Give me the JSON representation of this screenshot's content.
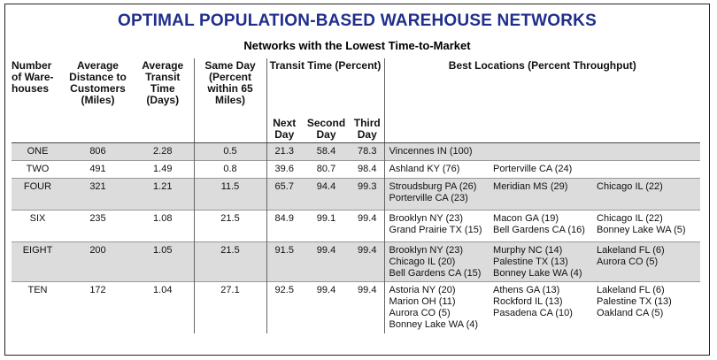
{
  "title": "OPTIMAL POPULATION-BASED WAREHOUSE NETWORKS",
  "subtitle": "Networks with the Lowest Time-to-Market",
  "headers": {
    "num_warehouses": [
      "Number",
      "of Ware-",
      "houses"
    ],
    "avg_distance": [
      "Average",
      "Distance to",
      "Customers",
      "(Miles)"
    ],
    "avg_transit": [
      "Average",
      "Transit",
      "Time",
      "(Days)"
    ],
    "same_day": [
      "Same Day",
      "(Percent",
      "within 65",
      "Miles)"
    ],
    "transit_time": "Transit Time (Percent)",
    "next_day": [
      "Next",
      "Day"
    ],
    "second_day": [
      "Second",
      "Day"
    ],
    "third_day": [
      "Third",
      "Day"
    ],
    "best_locations": "Best Locations (Percent Throughput)"
  },
  "rows": [
    {
      "label": "ONE",
      "distance": "806",
      "transit": "2.28",
      "same_day": "0.5",
      "next": "21.3",
      "second": "58.4",
      "third": "78.3",
      "loc1": [
        "Vincennes IN (100)"
      ],
      "loc2": [],
      "loc3": []
    },
    {
      "label": "TWO",
      "distance": "491",
      "transit": "1.49",
      "same_day": "0.8",
      "next": "39.6",
      "second": "80.7",
      "third": "98.4",
      "loc1": [
        "Ashland KY (76)"
      ],
      "loc2": [
        "Porterville CA (24)"
      ],
      "loc3": []
    },
    {
      "label": "FOUR",
      "distance": "321",
      "transit": "1.21",
      "same_day": "11.5",
      "next": "65.7",
      "second": "94.4",
      "third": "99.3",
      "loc1": [
        "Stroudsburg PA (26)",
        "Porterville CA (23)"
      ],
      "loc2": [
        "Meridian MS (29)"
      ],
      "loc3": [
        "Chicago IL (22)"
      ]
    },
    {
      "label": "SIX",
      "distance": "235",
      "transit": "1.08",
      "same_day": "21.5",
      "next": "84.9",
      "second": "99.1",
      "third": "99.4",
      "loc1": [
        "Brooklyn NY (23)",
        "Grand Prairie TX (15)"
      ],
      "loc2": [
        "Macon GA (19)",
        "Bell Gardens CA (16)"
      ],
      "loc3": [
        "Chicago IL (22)",
        "Bonney Lake WA (5)"
      ]
    },
    {
      "label": "EIGHT",
      "distance": "200",
      "transit": "1.05",
      "same_day": "21.5",
      "next": "91.5",
      "second": "99.4",
      "third": "99.4",
      "loc1": [
        "Brooklyn NY (23)",
        "Chicago IL (20)",
        "Bell Gardens CA (15)"
      ],
      "loc2": [
        "Murphy NC (14)",
        "Palestine TX (13)",
        "Bonney Lake WA (4)"
      ],
      "loc3": [
        "Lakeland FL (6)",
        "Aurora CO (5)"
      ]
    },
    {
      "label": "TEN",
      "distance": "172",
      "transit": "1.04",
      "same_day": "27.1",
      "next": "92.5",
      "second": "99.4",
      "third": "99.4",
      "loc1": [
        "Astoria NY (20)",
        "Marion OH (11)",
        "Aurora CO (5)",
        "Bonney Lake WA (4)"
      ],
      "loc2": [
        "Athens GA (13)",
        "Rockford IL (13)",
        "Pasadena CA (10)"
      ],
      "loc3": [
        "Lakeland FL (6)",
        "Palestine TX (13)",
        "Oakland CA (5)"
      ]
    }
  ],
  "colors": {
    "title": "#1f2e8c",
    "shaded_row": "#dcdcdc"
  }
}
